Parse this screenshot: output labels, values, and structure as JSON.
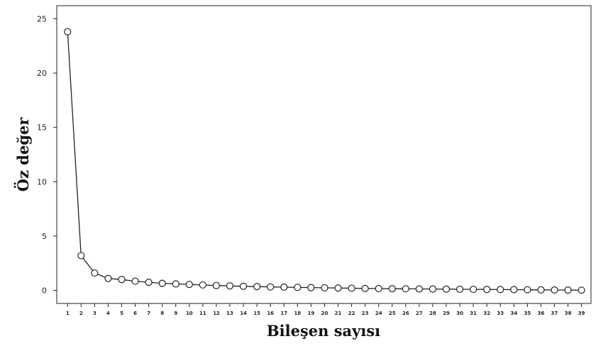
{
  "chart_data": {
    "type": "line",
    "title": "",
    "xlabel": "Bileşen sayısı",
    "ylabel": "Öz değer",
    "x": [
      1,
      2,
      3,
      4,
      5,
      6,
      7,
      8,
      9,
      10,
      11,
      12,
      13,
      14,
      15,
      16,
      17,
      18,
      19,
      20,
      21,
      22,
      23,
      24,
      25,
      26,
      27,
      28,
      29,
      30,
      31,
      32,
      33,
      34,
      35,
      36,
      37,
      38,
      39
    ],
    "series": [
      {
        "values": [
          23.8,
          3.2,
          1.6,
          1.1,
          1.0,
          0.85,
          0.75,
          0.65,
          0.6,
          0.55,
          0.5,
          0.45,
          0.42,
          0.38,
          0.35,
          0.32,
          0.3,
          0.28,
          0.26,
          0.24,
          0.22,
          0.2,
          0.18,
          0.17,
          0.16,
          0.15,
          0.14,
          0.13,
          0.12,
          0.11,
          0.1,
          0.09,
          0.08,
          0.07,
          0.06,
          0.05,
          0.04,
          0.03,
          0.02
        ]
      }
    ],
    "yticks": [
      0,
      5,
      10,
      15,
      20,
      25
    ],
    "ylim": [
      -1.2,
      26.2
    ],
    "xlim": [
      0.2,
      39.7
    ],
    "grid": false,
    "line_color": "#222222",
    "marker": "open-circle"
  }
}
